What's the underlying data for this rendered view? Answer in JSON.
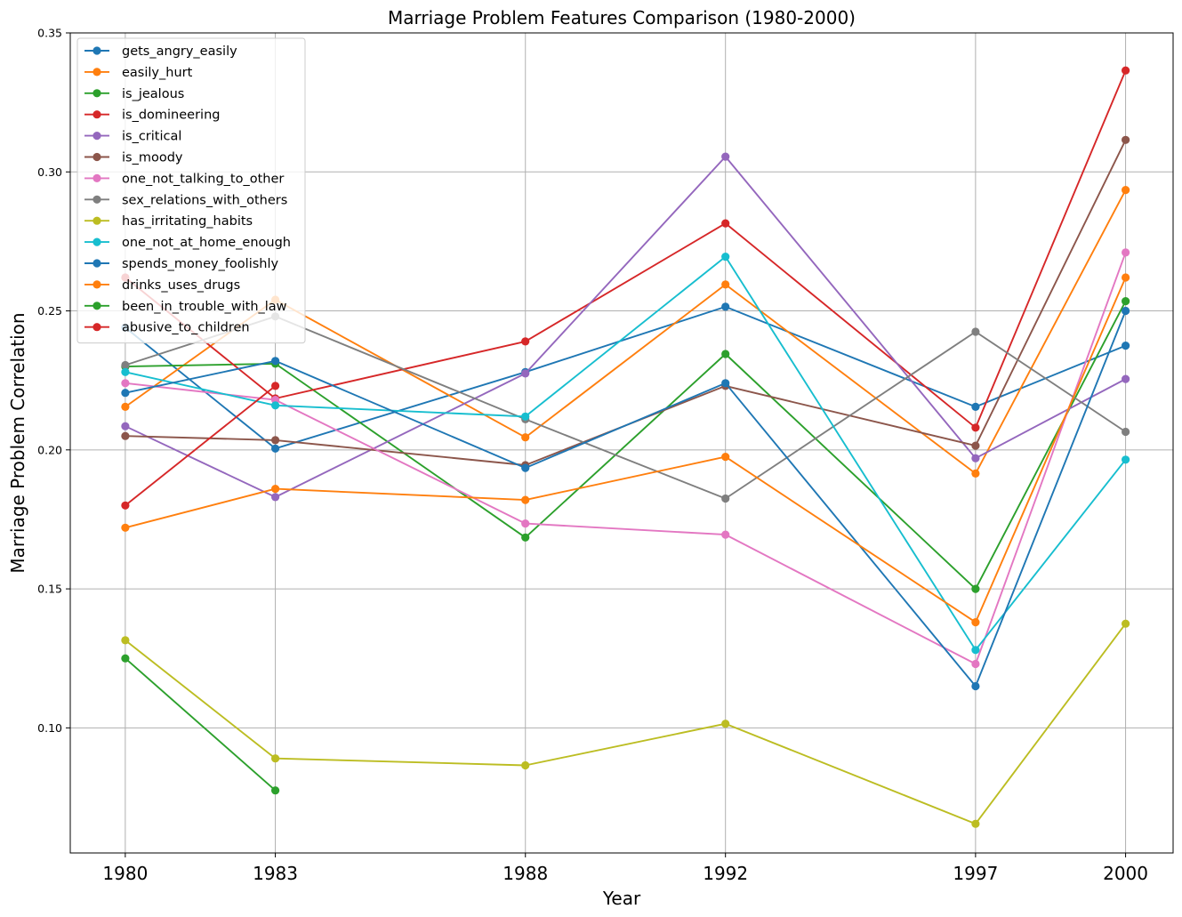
{
  "chart_data": {
    "type": "line",
    "title": "Marriage Problem Features Comparison (1980-2000)",
    "xlabel": "Year",
    "ylabel": "Marriage Problem Correlation",
    "x": [
      1980,
      1983,
      1988,
      1992,
      1997,
      2000
    ],
    "x_tick_labels": [
      "1980",
      "1983",
      "1988",
      "1992",
      "1997",
      "2000"
    ],
    "xlim": [
      1978.9,
      2000.95
    ],
    "ylim": [
      0.055,
      0.35
    ],
    "y_ticks": [
      0.1,
      0.15,
      0.2,
      0.25,
      0.3,
      0.35
    ],
    "y_tick_labels": [
      "0.10",
      "0.15",
      "0.20",
      "0.25",
      "0.30",
      "0.35"
    ],
    "grid": true,
    "legend_position": "upper-left",
    "marker": "circle",
    "series": [
      {
        "name": "gets_angry_easily",
        "color": "#1f77b4",
        "values": [
          0.244,
          0.2005,
          0.228,
          0.2515,
          0.2155,
          0.2375
        ]
      },
      {
        "name": "easily_hurt",
        "color": "#ff7f0e",
        "values": [
          0.2155,
          0.254,
          0.2045,
          0.2595,
          0.1915,
          0.2935
        ]
      },
      {
        "name": "is_jealous",
        "color": "#2ca02c",
        "values": [
          0.23,
          0.231,
          0.1685,
          0.2345,
          0.15,
          0.2535
        ]
      },
      {
        "name": "is_domineering",
        "color": "#d62728",
        "values": [
          0.262,
          0.2185,
          0.239,
          0.2815,
          0.208,
          0.3365
        ]
      },
      {
        "name": "is_critical",
        "color": "#9467bd",
        "values": [
          0.2085,
          0.183,
          0.2275,
          0.3055,
          0.197,
          0.2255
        ]
      },
      {
        "name": "is_moody",
        "color": "#8c564b",
        "values": [
          0.205,
          0.2035,
          0.1945,
          0.223,
          0.2015,
          0.3115
        ]
      },
      {
        "name": "one_not_talking_to_other",
        "color": "#e377c2",
        "values": [
          0.224,
          0.218,
          0.1735,
          0.1695,
          0.123,
          0.271
        ]
      },
      {
        "name": "sex_relations_with_others",
        "color": "#7f7f7f",
        "values": [
          0.2305,
          0.248,
          0.211,
          0.1825,
          0.2425,
          0.2065
        ]
      },
      {
        "name": "has_irritating_habits",
        "color": "#bcbd22",
        "values": [
          0.1315,
          0.089,
          0.0865,
          0.1015,
          0.0655,
          0.1375
        ]
      },
      {
        "name": "one_not_at_home_enough",
        "color": "#17becf",
        "values": [
          0.228,
          0.216,
          0.212,
          0.2695,
          0.128,
          0.1965
        ]
      },
      {
        "name": "spends_money_foolishly",
        "color": "#1f77b4",
        "values": [
          0.2205,
          0.232,
          0.1935,
          0.224,
          0.115,
          0.25
        ]
      },
      {
        "name": "drinks_uses_drugs",
        "color": "#ff7f0e",
        "values": [
          0.172,
          0.186,
          0.182,
          0.1975,
          0.138,
          0.262
        ]
      },
      {
        "name": "been_in_trouble_with_law",
        "color": "#2ca02c",
        "values": [
          0.125,
          0.0775,
          null,
          null,
          null,
          null
        ]
      },
      {
        "name": "abusive_to_children",
        "color": "#d62728",
        "values": [
          0.18,
          0.223,
          null,
          null,
          null,
          null
        ]
      }
    ]
  }
}
